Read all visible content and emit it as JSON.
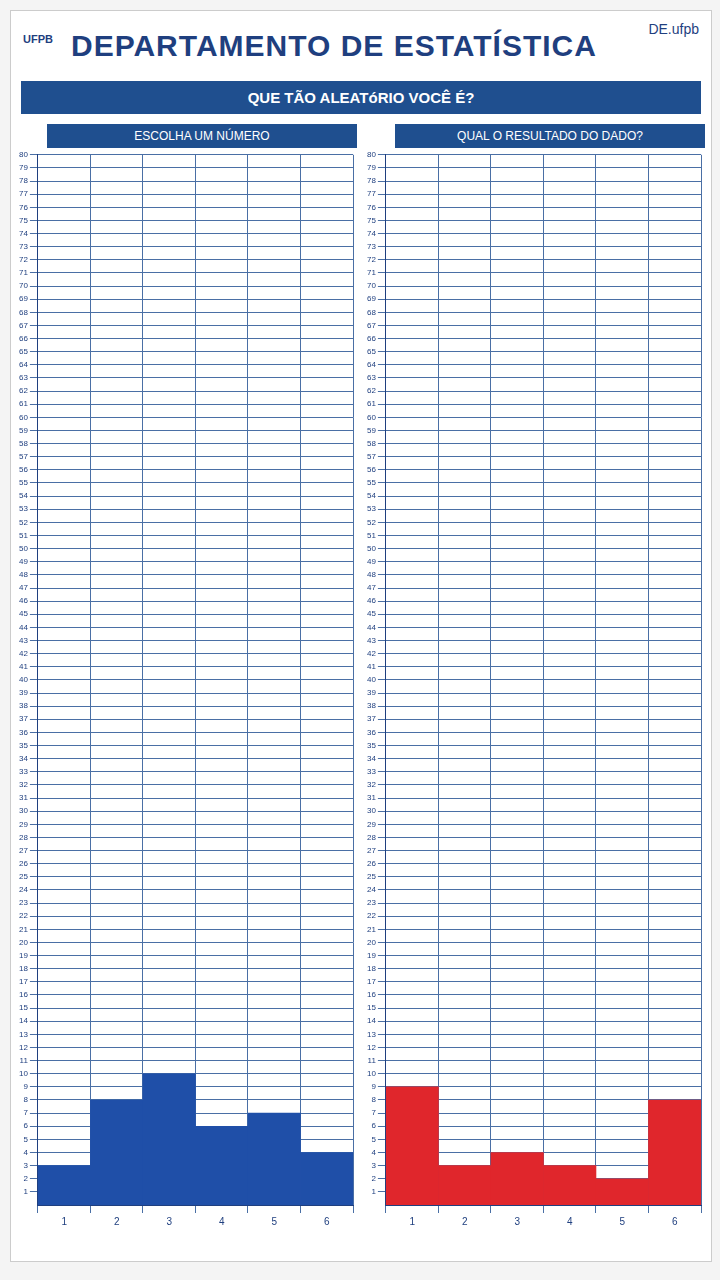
{
  "header": {
    "title": "DEPARTAMENTO DE ESTATÍSTICA",
    "subtitle": "QUE TÃO ALEATóRIO VOCÊ É?",
    "logo_left": "UFPB",
    "logo_right": "DE.ufpb"
  },
  "chart_data": [
    {
      "type": "bar",
      "title": "ESCOLHA UM NÚMERO",
      "categories": [
        "1",
        "2",
        "3",
        "4",
        "5",
        "6"
      ],
      "values": [
        3,
        8,
        10,
        6,
        7,
        4
      ],
      "color": "#1f4fa8",
      "ylim": [
        0,
        80
      ],
      "yticks": [
        1,
        2,
        3,
        4,
        5,
        6,
        7,
        8,
        9,
        10,
        11,
        12,
        13,
        14,
        15,
        16,
        17,
        18,
        19,
        20,
        21,
        22,
        23,
        24,
        25,
        26,
        27,
        28,
        29,
        30,
        31,
        32,
        33,
        34,
        35,
        36,
        37,
        38,
        39,
        40,
        41,
        42,
        43,
        44,
        45,
        46,
        47,
        48,
        49,
        50,
        51,
        52,
        53,
        54,
        55,
        56,
        57,
        58,
        59,
        60,
        61,
        62,
        63,
        64,
        65,
        66,
        67,
        68,
        69,
        70,
        71,
        72,
        73,
        74,
        75,
        76,
        77,
        78,
        79,
        80
      ],
      "grid": true
    },
    {
      "type": "bar",
      "title": "QUAL O RESULTADO DO DADO?",
      "categories": [
        "1",
        "2",
        "3",
        "4",
        "5",
        "6"
      ],
      "values": [
        9,
        3,
        4,
        3,
        2,
        8
      ],
      "color": "#e0262c",
      "ylim": [
        0,
        80
      ],
      "yticks": [
        1,
        2,
        3,
        4,
        5,
        6,
        7,
        8,
        9,
        10,
        11,
        12,
        13,
        14,
        15,
        16,
        17,
        18,
        19,
        20,
        21,
        22,
        23,
        24,
        25,
        26,
        27,
        28,
        29,
        30,
        31,
        32,
        33,
        34,
        35,
        36,
        37,
        38,
        39,
        40,
        41,
        42,
        43,
        44,
        45,
        46,
        47,
        48,
        49,
        50,
        51,
        52,
        53,
        54,
        55,
        56,
        57,
        58,
        59,
        60,
        61,
        62,
        63,
        64,
        65,
        66,
        67,
        68,
        69,
        70,
        71,
        72,
        73,
        74,
        75,
        76,
        77,
        78,
        79,
        80
      ],
      "grid": true
    }
  ]
}
